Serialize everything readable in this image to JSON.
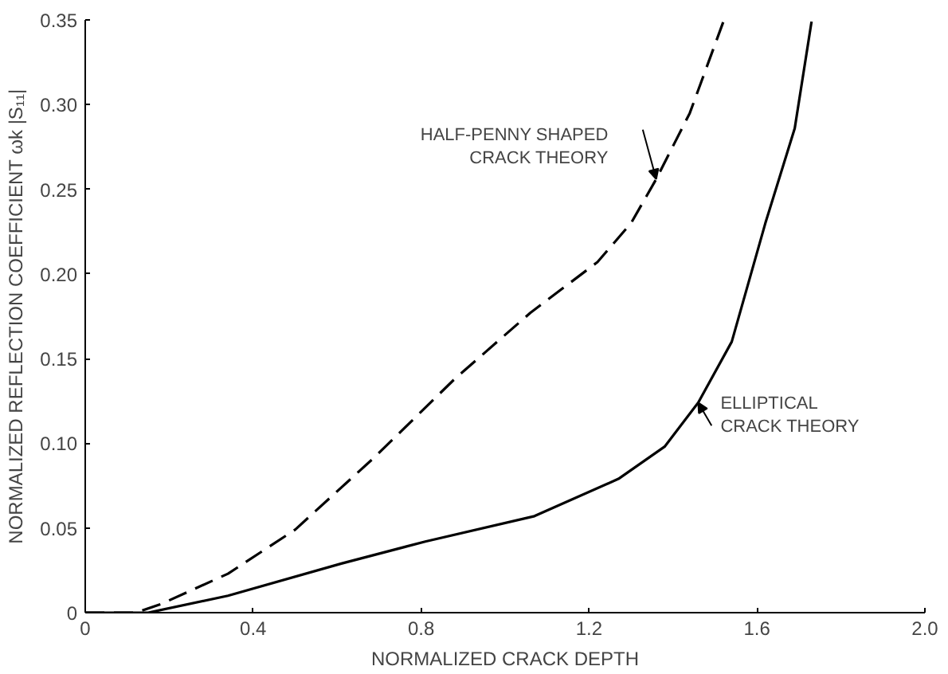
{
  "chart_data": {
    "type": "line",
    "xlabel": "NORMALIZED CRACK DEPTH",
    "ylabel": "NORMALIZED REFLECTION COEFFICIENT ωk |S₁₁|",
    "xlim": [
      0,
      2.0
    ],
    "ylim": [
      0,
      0.35
    ],
    "xticks": [
      0,
      0.4,
      0.8,
      1.2,
      1.6,
      {
        "value": 2.0,
        "label": "2.0"
      }
    ],
    "yticks": [
      0,
      {
        "value": 0.05,
        "label": "0.05"
      },
      {
        "value": 0.1,
        "label": "0.10"
      },
      0.15,
      {
        "value": 0.2,
        "label": "0.20"
      },
      0.25,
      {
        "value": 0.3,
        "label": "0.30"
      },
      0.35
    ],
    "grid": false,
    "marker": "none",
    "series": [
      {
        "color": "#000000",
        "line_style": "dashed",
        "x": [
          0,
          0.12,
          0.18,
          0.34,
          0.5,
          0.69,
          0.88,
          1.06,
          1.22,
          1.3,
          1.36,
          1.44,
          1.52
        ],
        "values": [
          0,
          0,
          0.005,
          0.023,
          0.049,
          0.092,
          0.138,
          0.177,
          0.207,
          0.23,
          0.256,
          0.295,
          0.349
        ]
      },
      {
        "color": "#000000",
        "line_style": "solid",
        "x": [
          0,
          0.15,
          0.34,
          0.61,
          0.81,
          1.07,
          1.27,
          1.38,
          1.46,
          1.54,
          1.62,
          1.69,
          1.73
        ],
        "values": [
          0,
          0,
          0.01,
          0.029,
          0.042,
          0.057,
          0.079,
          0.098,
          0.124,
          0.16,
          0.23,
          0.286,
          0.349
        ]
      }
    ],
    "annotations": [
      {
        "text": "HALF-PENNY SHAPED\nCRACK THEORY",
        "x": 1.36,
        "y": 0.256
      },
      {
        "text": "ELLIPTICAL\nCRACK THEORY",
        "x": 1.46,
        "y": 0.124
      }
    ]
  }
}
